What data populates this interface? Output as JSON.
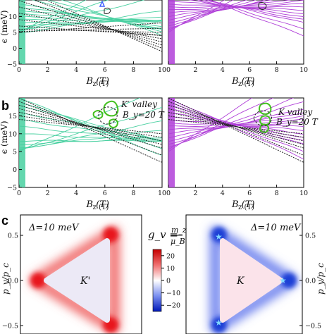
{
  "panel_labels": {
    "b": "b",
    "c": "c"
  },
  "colors": {
    "kprime_fan": "#48d0a0",
    "k_fan": "#b040d8",
    "dashed": "#222222",
    "contour_green": "#44c020",
    "cmap_pos": "#e8141e",
    "cmap_neg": "#1f3fd6",
    "star": "#7fd7ff"
  },
  "icons": {
    "star": "star-marker-icon"
  },
  "chart_data": [
    {
      "type": "line",
      "id": "a-left",
      "xlabel": "B_z (T)",
      "ylabel": "ϵ (meV)",
      "xlim": [
        0,
        10
      ],
      "ylim": [
        -5,
        20
      ],
      "xticks": [
        "0",
        "2",
        "4",
        "6",
        "8",
        "10"
      ],
      "yticks": [
        "−5",
        "0",
        "5",
        "10"
      ],
      "series": [
        {
          "style": "solid",
          "color": "kprime_fan",
          "e0": [
            5,
            5.2,
            5.5,
            4.8,
            6,
            7,
            8,
            9,
            10,
            11,
            12,
            13,
            14,
            16,
            18,
            20
          ],
          "slope": [
            2.2,
            1.6,
            1.1,
            0.7,
            0.4,
            0.2,
            0.05,
            -0.05,
            -0.15,
            -0.25,
            -0.4,
            -0.6,
            -0.8,
            -1.0,
            -1.3,
            -1.6
          ]
        },
        {
          "style": "dashed",
          "color": "dashed",
          "e0": [
            5,
            5.3,
            6,
            7,
            9,
            11,
            13,
            15,
            17,
            19
          ],
          "slope": [
            0.3,
            0.1,
            -0.1,
            -0.3,
            -0.5,
            -0.8,
            -1.1,
            -1.4,
            -1.7,
            -2.0
          ]
        }
      ]
    },
    {
      "type": "line",
      "id": "a-right",
      "xlabel": "B_z (T)",
      "xlim": [
        0,
        10
      ],
      "ylim": [
        -5,
        20
      ],
      "xticks": [
        "0",
        "2",
        "4",
        "6",
        "8",
        "10"
      ],
      "series": [
        {
          "style": "solid",
          "color": "k_fan",
          "e0": [
            5,
            5.5,
            6,
            7,
            8,
            9,
            10,
            11,
            12,
            13,
            14,
            15,
            16,
            17,
            18,
            19,
            20
          ],
          "slope": [
            2.5,
            2.0,
            1.6,
            1.3,
            1.0,
            0.8,
            0.6,
            0.4,
            0.2,
            0.0,
            -0.2,
            -0.4,
            -0.6,
            -0.8,
            -1.0,
            -1.3,
            -1.6
          ]
        }
      ]
    },
    {
      "type": "line",
      "id": "b-left",
      "xlabel": "B_z (T)",
      "ylabel": "ϵ (meV)",
      "annotation": [
        "K′ valley",
        "B_y=20 T"
      ],
      "xlim": [
        0,
        10
      ],
      "ylim": [
        -5,
        20
      ],
      "xticks": [
        "0",
        "2",
        "4",
        "6",
        "8",
        "10"
      ],
      "yticks": [
        "−5",
        "0",
        "5",
        "10",
        "15",
        "20"
      ],
      "series": [
        {
          "style": "solid",
          "color": "kprime_fan",
          "e0": [
            5,
            5.2,
            5.5,
            6,
            7,
            8,
            10,
            12,
            14,
            16,
            18,
            19,
            20
          ],
          "slope": [
            1.8,
            1.2,
            0.8,
            0.5,
            0.2,
            0.0,
            -0.2,
            -0.4,
            -0.6,
            -0.8,
            -1.0,
            -1.3,
            -1.6
          ]
        },
        {
          "style": "dashed",
          "color": "dashed",
          "e0": [
            14,
            15,
            16,
            17,
            18,
            19,
            20
          ],
          "slope": [
            -0.4,
            -0.6,
            -0.8,
            -1.0,
            -1.2,
            -1.5,
            -1.8
          ]
        }
      ]
    },
    {
      "type": "line",
      "id": "b-right",
      "xlabel": "B_z (T)",
      "annotation": [
        "K valley",
        "B_y=20 T"
      ],
      "xlim": [
        0,
        10
      ],
      "ylim": [
        -5,
        20
      ],
      "xticks": [
        "0",
        "2",
        "4",
        "6",
        "8",
        "10"
      ],
      "series": [
        {
          "style": "solid",
          "color": "k_fan",
          "e0": [
            5,
            5.5,
            6,
            7,
            8,
            9,
            10,
            11,
            12,
            13,
            14,
            15,
            16,
            17,
            18,
            19,
            20
          ],
          "slope": [
            2.4,
            1.9,
            1.5,
            1.2,
            0.9,
            0.7,
            0.5,
            0.3,
            0.1,
            -0.1,
            -0.3,
            -0.5,
            -0.7,
            -0.9,
            -1.1,
            -1.4,
            -1.7
          ]
        },
        {
          "style": "dashed",
          "color": "dashed",
          "e0": [
            14,
            15,
            16,
            17,
            18,
            19,
            20
          ],
          "slope": [
            -0.4,
            -0.6,
            -0.8,
            -1.0,
            -1.2,
            -1.5,
            -1.8
          ]
        }
      ]
    },
    {
      "type": "heatmap",
      "id": "c-left",
      "ylabel": "p_y/p_c",
      "annotation": "Δ=10 meV",
      "valley_label": "K'",
      "yticks": [
        "0.5",
        "0.0",
        "−0.5"
      ],
      "sign": "positive-at-corners"
    },
    {
      "type": "heatmap",
      "id": "c-right",
      "ylabel": "p_y/p_c",
      "annotation": "Δ=10 meV",
      "valley_label": "K",
      "yticks": [
        "0.5",
        "0.0",
        "−0.5"
      ],
      "sign": "negative-at-corners"
    },
    {
      "type": "colorbar",
      "id": "colorbar",
      "label_lhs": "g_v =",
      "label_num": "m_z",
      "label_den": "μ_B",
      "range": [
        -25,
        25
      ],
      "ticks": [
        "20",
        "10",
        "0",
        "−10",
        "−20"
      ],
      "tick_values": [
        20,
        10,
        0,
        -10,
        -20
      ]
    }
  ]
}
